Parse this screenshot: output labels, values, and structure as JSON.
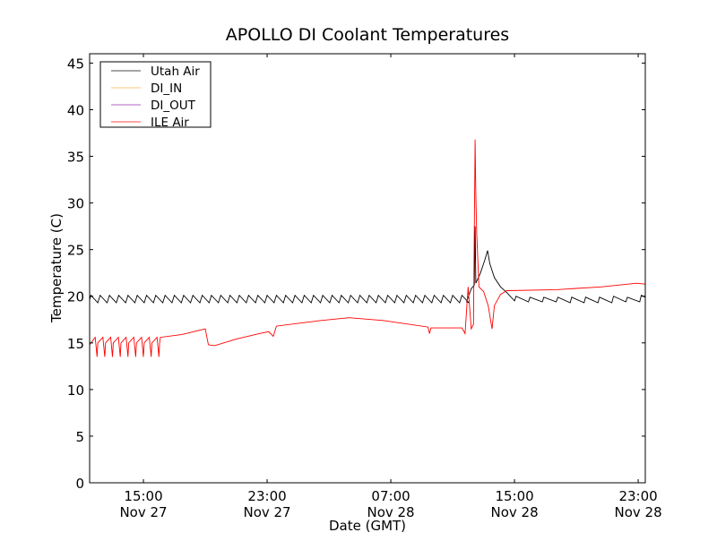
{
  "chart_data": {
    "type": "line",
    "title": "APOLLO DI Coolant Temperatures",
    "xlabel": "Date (GMT)",
    "ylabel": "Temperature (C)",
    "x_units": "hours since Nov 27 00:00 GMT",
    "xlim": [
      11.52,
      47.46
    ],
    "ylim": [
      0,
      46
    ],
    "yticks": [
      0,
      5,
      10,
      15,
      20,
      25,
      30,
      35,
      40,
      45
    ],
    "xticks": [
      {
        "x": 15,
        "time": "15:00",
        "date": "Nov 27"
      },
      {
        "x": 23,
        "time": "23:00",
        "date": "Nov 27"
      },
      {
        "x": 31,
        "time": "07:00",
        "date": "Nov 28"
      },
      {
        "x": 39,
        "time": "15:00",
        "date": "Nov 28"
      },
      {
        "x": 47,
        "time": "23:00",
        "date": "Nov 28"
      }
    ],
    "grid": false,
    "legend_position": "top-left",
    "series": [
      {
        "name": "Utah Air",
        "color": "#000000",
        "saw_peaks": [
          11.6,
          12.2,
          12.8,
          13.4,
          14.0,
          14.6,
          15.2,
          15.8,
          16.4,
          17.0,
          17.6,
          18.2,
          18.8,
          19.4,
          20.0,
          20.6,
          21.2,
          21.8,
          22.4,
          23.0,
          23.6,
          24.2,
          24.8,
          25.4,
          26.0,
          26.6,
          27.2,
          27.8,
          28.4,
          29.0,
          29.6,
          30.2,
          30.8,
          31.4,
          32.0,
          32.6,
          33.2,
          33.8,
          34.4,
          35.0,
          35.6
        ],
        "points": [
          [
            35.9,
            19.4
          ],
          [
            36.2,
            20.8
          ],
          [
            36.4,
            21.2
          ],
          [
            36.45,
            27.5
          ],
          [
            36.5,
            21.4
          ],
          [
            36.8,
            22.5
          ],
          [
            37.1,
            24.0
          ],
          [
            37.26,
            24.9
          ],
          [
            37.4,
            23.5
          ],
          [
            37.7,
            22.0
          ],
          [
            38.1,
            21.0
          ],
          [
            38.5,
            20.4
          ],
          [
            39.0,
            19.5
          ],
          [
            39.1,
            20.0
          ],
          [
            39.9,
            19.4
          ],
          [
            40.0,
            19.9
          ],
          [
            40.8,
            19.4
          ],
          [
            40.9,
            19.9
          ],
          [
            41.7,
            19.4
          ],
          [
            41.8,
            19.9
          ],
          [
            42.6,
            19.3
          ],
          [
            42.7,
            19.9
          ],
          [
            43.5,
            19.3
          ],
          [
            43.6,
            19.9
          ],
          [
            44.4,
            19.3
          ],
          [
            44.5,
            19.9
          ],
          [
            45.3,
            19.3
          ],
          [
            45.4,
            20.0
          ],
          [
            46.2,
            19.4
          ],
          [
            46.3,
            19.9
          ],
          [
            47.1,
            19.4
          ],
          [
            47.2,
            20.1
          ],
          [
            47.46,
            19.9
          ]
        ]
      },
      {
        "name": "DI_IN",
        "color": "#f5b041",
        "points": []
      },
      {
        "name": "DI_OUT",
        "color": "#8e24aa",
        "points": []
      },
      {
        "name": "ILE Air",
        "color": "#ff0000",
        "dips": [
          12.0,
          12.5,
          13.0,
          13.5,
          14.0,
          14.5,
          15.0,
          15.5,
          16.0
        ],
        "points": [
          [
            16.1,
            15.6
          ],
          [
            17.5,
            15.9
          ],
          [
            19.0,
            16.5
          ],
          [
            19.2,
            14.8
          ],
          [
            19.6,
            14.7
          ],
          [
            21.0,
            15.4
          ],
          [
            22.5,
            16.0
          ],
          [
            23.1,
            16.2
          ],
          [
            23.4,
            15.7
          ],
          [
            23.6,
            16.8
          ],
          [
            25.5,
            17.2
          ],
          [
            26.5,
            17.4
          ],
          [
            28.3,
            17.7
          ],
          [
            30.5,
            17.4
          ],
          [
            33.4,
            16.7
          ],
          [
            33.5,
            16.0
          ],
          [
            33.6,
            16.6
          ],
          [
            35.6,
            16.6
          ],
          [
            35.8,
            16.0
          ],
          [
            36.0,
            21.0
          ],
          [
            36.2,
            16.5
          ],
          [
            36.35,
            17.0
          ],
          [
            36.45,
            36.8
          ],
          [
            36.5,
            31.0
          ],
          [
            36.55,
            27.0
          ],
          [
            36.7,
            21.0
          ],
          [
            37.0,
            20.5
          ],
          [
            37.3,
            19.0
          ],
          [
            37.55,
            16.5
          ],
          [
            37.7,
            19.0
          ],
          [
            38.1,
            20.2
          ],
          [
            38.5,
            20.6
          ],
          [
            41.7,
            20.7
          ],
          [
            44.6,
            21.0
          ],
          [
            46.9,
            21.4
          ],
          [
            47.46,
            21.3
          ]
        ]
      }
    ]
  }
}
